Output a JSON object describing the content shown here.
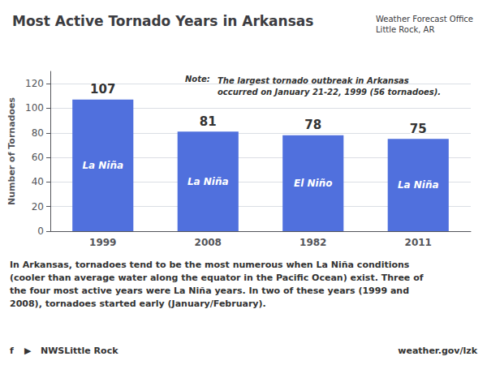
{
  "chart_data": {
    "type": "bar",
    "title": "Most Active Tornado Years in Arkansas",
    "subtitle": "Weather Forecast Office\nLittle Rock, AR",
    "categories": [
      "1999",
      "2008",
      "1982",
      "2011"
    ],
    "values": [
      107,
      81,
      78,
      75
    ],
    "data_labels": true,
    "ylabel": "Number of Tornadoes",
    "ylim": [
      0,
      130
    ],
    "yticks": [
      0,
      20,
      40,
      60,
      80,
      100,
      120
    ],
    "grid": true,
    "condition_labels": [
      "La Niña",
      "La Niña",
      "El Niño",
      "La Niña"
    ],
    "note_label": "Note:",
    "note": "The largest tornado outbreak in Arkansas\noccurred on January 21-22, 1999 (56 tornadoes).",
    "footer": "In Arkansas, tornadoes tend to be the most numerous when La Niña conditions\n(cooler than average water along the equator in the Pacific Ocean) exist. Three of\nthe four most active years were La Niña years. In two of these years (1999 and\n2008), tornadoes started early (January/February).",
    "bottom_left": [
      "f",
      "▶",
      "NWSLittle Rock"
    ],
    "bottom_right": "weather.gov/lzk"
  }
}
